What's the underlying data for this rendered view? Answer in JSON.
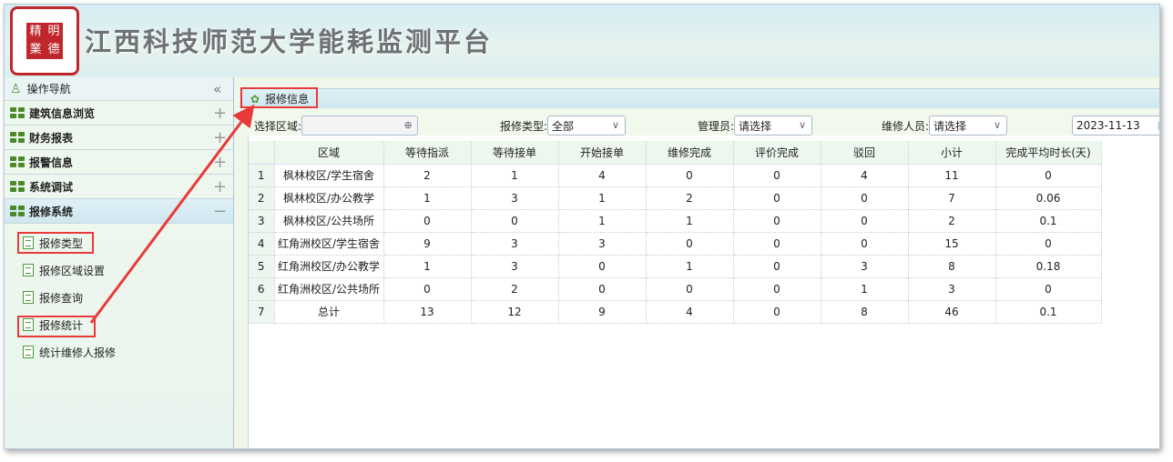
{
  "header": {
    "title": "江西科技师范大学能耗监测平台",
    "logo_text": "精业 明德"
  },
  "sidebar": {
    "title": "操作导航",
    "collapse_icon": "«",
    "groups": [
      {
        "label": "建筑信息浏览",
        "toggle": "+"
      },
      {
        "label": "财务报表",
        "toggle": "+"
      },
      {
        "label": "报警信息",
        "toggle": "+"
      },
      {
        "label": "系统调试",
        "toggle": "+"
      },
      {
        "label": "报修系统",
        "toggle": "−"
      }
    ],
    "items": [
      {
        "label": "报修类型"
      },
      {
        "label": "报修区域设置"
      },
      {
        "label": "报修查询"
      },
      {
        "label": "报修统计"
      },
      {
        "label": "统计维修人报修"
      }
    ]
  },
  "panel": {
    "title": "报修信息"
  },
  "filters": {
    "area_label": "选择区域:",
    "area_value": "",
    "type_label": "报修类型:",
    "type_value": "全部",
    "manager_label": "管理员:",
    "manager_value": "请选择",
    "worker_label": "维修人员:",
    "worker_value": "请选择",
    "date_value": "2023-11-13"
  },
  "table": {
    "headers": [
      "",
      "区域",
      "等待指派",
      "等待接单",
      "开始接单",
      "维修完成",
      "评价完成",
      "驳回",
      "小计",
      "完成平均时长(天)"
    ],
    "rows": [
      [
        "1",
        "枫林校区/学生宿舍",
        "2",
        "1",
        "4",
        "0",
        "0",
        "4",
        "11",
        "0"
      ],
      [
        "2",
        "枫林校区/办公教学",
        "1",
        "3",
        "1",
        "2",
        "0",
        "0",
        "7",
        "0.06"
      ],
      [
        "3",
        "枫林校区/公共场所",
        "0",
        "0",
        "1",
        "1",
        "0",
        "0",
        "2",
        "0.1"
      ],
      [
        "4",
        "红角洲校区/学生宿舍",
        "9",
        "3",
        "3",
        "0",
        "0",
        "0",
        "15",
        "0"
      ],
      [
        "5",
        "红角洲校区/办公教学",
        "1",
        "3",
        "0",
        "1",
        "0",
        "3",
        "8",
        "0.18"
      ],
      [
        "6",
        "红角洲校区/公共场所",
        "0",
        "2",
        "0",
        "0",
        "0",
        "1",
        "3",
        "0"
      ],
      [
        "7",
        "总计",
        "13",
        "12",
        "9",
        "4",
        "0",
        "8",
        "46",
        "0.1"
      ]
    ]
  },
  "colors": {
    "annotation": "#e83a3a",
    "accent_green": "#4a8a2a"
  }
}
